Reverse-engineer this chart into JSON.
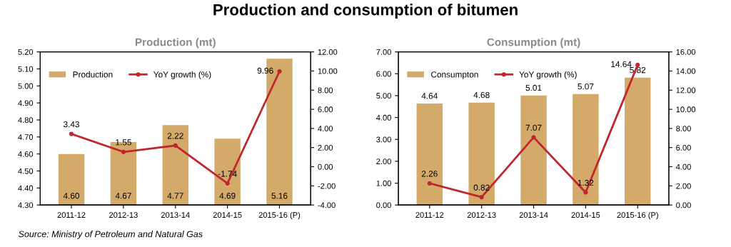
{
  "chart_data": [
    {
      "type": "bar",
      "title": "Production and consumption of bitumen",
      "subtitle": "Production (mt)",
      "categories": [
        "2011-12",
        "2012-13",
        "2013-14",
        "2014-15",
        "2015-16 (P)"
      ],
      "series": [
        {
          "name": "Production",
          "color": "#d4aa6a",
          "values": [
            4.6,
            4.67,
            4.77,
            4.69,
            5.16
          ],
          "value_labels": [
            "4.60",
            "4.67",
            "4.77",
            "4.69",
            "5.16"
          ]
        },
        {
          "name": "YoY growth (%)",
          "type": "line",
          "axis": "y2",
          "color": "#c0272d",
          "values": [
            3.43,
            1.55,
            2.22,
            -1.74,
            9.96
          ],
          "value_labels": [
            "3.43",
            "1.55",
            "2.22",
            "-1.74",
            "9.96"
          ]
        }
      ],
      "ylim": [
        4.3,
        5.2
      ],
      "yticks": [
        {
          "value": 4.3,
          "label": "4.30"
        },
        {
          "value": 4.4,
          "label": "4.40"
        },
        {
          "value": 4.5,
          "label": "4.50"
        },
        {
          "value": 4.6,
          "label": "4.60"
        },
        {
          "value": 4.7,
          "label": "4.70"
        },
        {
          "value": 4.8,
          "label": "4.80"
        },
        {
          "value": 4.9,
          "label": "4.90"
        },
        {
          "value": 5.0,
          "label": "5.00"
        },
        {
          "value": 5.1,
          "label": "5.10"
        },
        {
          "value": 5.2,
          "label": "5.20"
        }
      ],
      "y2lim": [
        -4,
        12
      ],
      "y2ticks": [
        {
          "value": -4,
          "label": "-4.00"
        },
        {
          "value": -2,
          "label": "-2.00"
        },
        {
          "value": 0,
          "label": "0.00"
        },
        {
          "value": 2,
          "label": "2.00"
        },
        {
          "value": 4,
          "label": "4.00"
        },
        {
          "value": 6,
          "label": "6.00"
        },
        {
          "value": 8,
          "label": "8.00"
        },
        {
          "value": 10,
          "label": "10.00"
        },
        {
          "value": 12,
          "label": "12.00"
        }
      ],
      "legend": "top left",
      "marker": "circle",
      "grid": false,
      "annotations": [
        "Source: Ministry of Petroleum and Natural Gas"
      ]
    },
    {
      "type": "bar",
      "title": "Consumption (mt)",
      "categories": [
        "2011-12",
        "2012-13",
        "2013-14",
        "2014-15",
        "2015-16 (P)"
      ],
      "series": [
        {
          "name": "Consumpton",
          "color": "#d4aa6a",
          "values": [
            4.64,
            4.68,
            5.01,
            5.07,
            5.82
          ],
          "value_labels": [
            "4.64",
            "4.68",
            "5.01",
            "5.07",
            "5.82"
          ]
        },
        {
          "name": "YoY growth (%)",
          "type": "line",
          "axis": "y2",
          "color": "#c0272d",
          "values": [
            2.26,
            0.82,
            7.07,
            1.32,
            14.64
          ],
          "value_labels": [
            "2.26",
            "0.82",
            "7.07",
            "1.32",
            "14.64"
          ]
        }
      ],
      "ylim": [
        0,
        7
      ],
      "yticks": [
        {
          "value": 0,
          "label": "0.00"
        },
        {
          "value": 1,
          "label": "1.00"
        },
        {
          "value": 2,
          "label": "2.00"
        },
        {
          "value": 3,
          "label": "3.00"
        },
        {
          "value": 4,
          "label": "4.00"
        },
        {
          "value": 5,
          "label": "5.00"
        },
        {
          "value": 6,
          "label": "6.00"
        },
        {
          "value": 7,
          "label": "7.00"
        }
      ],
      "y2lim": [
        0,
        16
      ],
      "y2ticks": [
        {
          "value": 0,
          "label": "0.00"
        },
        {
          "value": 2,
          "label": "2.00"
        },
        {
          "value": 4,
          "label": "4.00"
        },
        {
          "value": 6,
          "label": "6.00"
        },
        {
          "value": 8,
          "label": "8.00"
        },
        {
          "value": 10,
          "label": "10.00"
        },
        {
          "value": 12,
          "label": "12.00"
        },
        {
          "value": 14,
          "label": "14.00"
        },
        {
          "value": 16,
          "label": "16.00"
        }
      ],
      "legend": "top left",
      "marker": "circle",
      "grid": false
    }
  ]
}
